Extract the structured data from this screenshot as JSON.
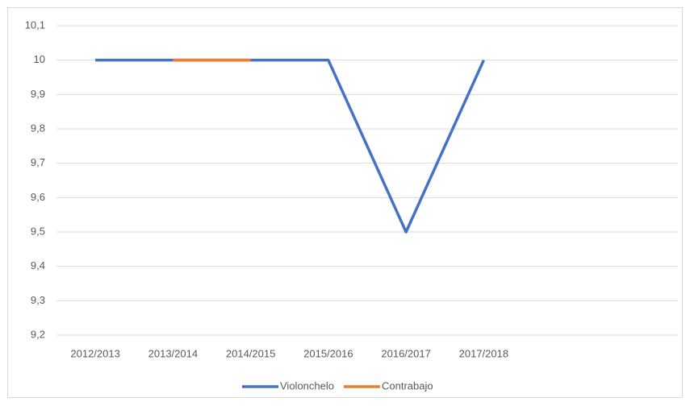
{
  "chart_data": {
    "type": "line",
    "categories": [
      "2012/2013",
      "2013/2014",
      "2014/2015",
      "2015/2016",
      "2016/2017",
      "2017/2018",
      null,
      null
    ],
    "series": [
      {
        "name": "Violonchelo",
        "color": "#4472c4",
        "values": [
          10,
          10,
          10,
          10,
          9.5,
          10,
          null,
          null
        ]
      },
      {
        "name": "Contrabajo",
        "color": "#ed7d31",
        "values": [
          null,
          10,
          10,
          null,
          null,
          null,
          null,
          null
        ]
      }
    ],
    "ylim": [
      9.2,
      10.1
    ],
    "yticks": [
      {
        "value": 9.2,
        "label": "9,2"
      },
      {
        "value": 9.3,
        "label": "9,3"
      },
      {
        "value": 9.4,
        "label": "9,4"
      },
      {
        "value": 9.5,
        "label": "9,5"
      },
      {
        "value": 9.6,
        "label": "9,6"
      },
      {
        "value": 9.7,
        "label": "9,7"
      },
      {
        "value": 9.8,
        "label": "9,8"
      },
      {
        "value": 9.9,
        "label": "9,9"
      },
      10,
      {
        "value": 10.1,
        "label": "10,1"
      }
    ],
    "grid": true,
    "legend": "bottom"
  }
}
